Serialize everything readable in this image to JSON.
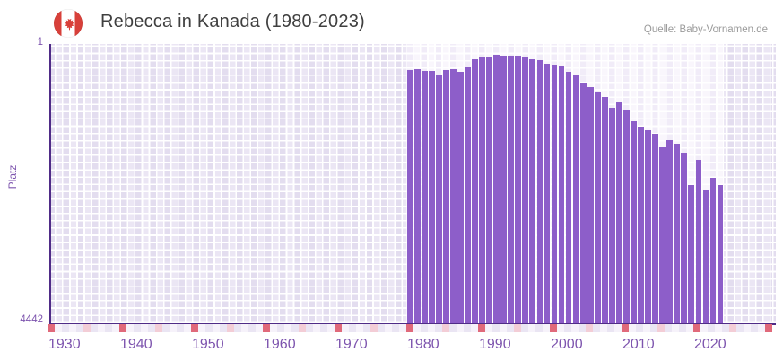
{
  "header": {
    "title": "Rebecca in Kanada (1980-2023)",
    "source": "Quelle: Baby-Vornamen.de",
    "flag_icon": "canada-flag"
  },
  "chart_data": {
    "type": "bar",
    "title": "Rebecca in Kanada (1980-2023)",
    "xlabel": "",
    "ylabel": "Platz",
    "y_axis": {
      "top_label": "1",
      "bottom_label": "4442",
      "min": 1,
      "max": 4442,
      "inverted": true,
      "scale": "sqrt"
    },
    "x_axis": {
      "tick_labels": [
        "1930",
        "1940",
        "1950",
        "1960",
        "1970",
        "1980",
        "1990",
        "2000",
        "2010",
        "2020"
      ],
      "range": [
        1930,
        2030
      ],
      "decade_marker_years": [
        1930,
        1940,
        1950,
        1960,
        1970,
        1980,
        1990,
        2000,
        2010,
        2020,
        2030
      ],
      "half_decade_marker_years": [
        1935,
        1945,
        1955,
        1965,
        1975,
        1985,
        1995,
        2005,
        2015,
        2025
      ]
    },
    "grid": true,
    "legend": false,
    "years": [
      1980,
      1981,
      1982,
      1983,
      1984,
      1985,
      1986,
      1987,
      1988,
      1989,
      1990,
      1991,
      1992,
      1993,
      1994,
      1995,
      1996,
      1997,
      1998,
      1999,
      2000,
      2001,
      2002,
      2003,
      2004,
      2005,
      2006,
      2007,
      2008,
      2009,
      2010,
      2011,
      2012,
      2013,
      2014,
      2015,
      2016,
      2017,
      2018,
      2019,
      2020,
      2021,
      2022,
      2023
    ],
    "ranks": [
      39,
      36,
      41,
      41,
      53,
      39,
      36,
      44,
      31,
      13,
      10,
      9,
      7,
      8,
      8,
      8,
      9,
      13,
      15,
      22,
      24,
      29,
      44,
      53,
      85,
      106,
      134,
      160,
      232,
      194,
      251,
      340,
      389,
      423,
      459,
      607,
      526,
      566,
      672,
      1132,
      764,
      1220,
      1020,
      1132
    ],
    "colors": {
      "bar": "#8d5ec9",
      "axis": "#4f2b87",
      "tick_text": "#7d54ae",
      "title_text": "#3f3f3f",
      "source_text": "#9b9b9b",
      "grid_col_a": "#e3ddef",
      "grid_col_b": "#ebe6f4",
      "grid_data_col_a": "#f1ecf8",
      "grid_data_col_b": "#f9f6fc",
      "strip_decade": "#e0697a",
      "strip_half_decade": "#f3cdd6",
      "strip_even": "#eae5f3",
      "strip_odd": "#f6f2fa",
      "flag_red": "#d8403a"
    }
  }
}
